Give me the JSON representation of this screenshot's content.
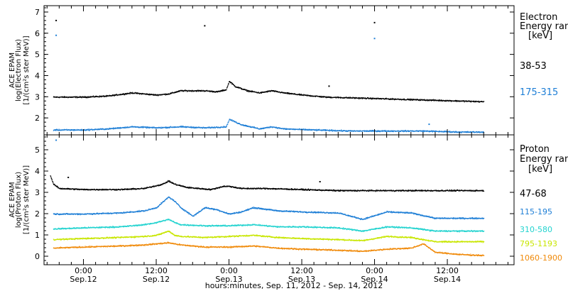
{
  "chart_data": {
    "type": "scatter",
    "xlabel": "hours:minutes, Sep. 11, 2012 - Sep. 14, 2012",
    "x_ticks": [
      {
        "time": "0:00",
        "date": "Sep.12",
        "hour": 0
      },
      {
        "time": "12:00",
        "date": "Sep.12",
        "hour": 12
      },
      {
        "time": "0:00",
        "date": "Sep.13",
        "hour": 24
      },
      {
        "time": "12:00",
        "date": "Sep.13",
        "hour": 36
      },
      {
        "time": "0:00",
        "date": "Sep.14",
        "hour": 48
      },
      {
        "time": "12:00",
        "date": "Sep.14",
        "hour": 60
      }
    ],
    "x_time_reference": "0:00 Sep.12",
    "xlim_hours": [
      -6.5,
      71
    ],
    "panels": [
      {
        "id": "electron",
        "ylabel": [
          "ACE EPAM",
          "log(Electron Flux)",
          "[1/(cm²s ster MeV)]"
        ],
        "ylim": [
          1.2,
          7.3
        ],
        "yticks": [
          2,
          3,
          4,
          5,
          6,
          7
        ],
        "legend": {
          "title": [
            "Electron",
            "Energy ran",
            "[keV]"
          ],
          "entries": [
            {
              "label": "38-53",
              "color": "#000000"
            },
            {
              "label": "175-315",
              "color": "#1f7fd6"
            }
          ]
        },
        "series": [
          {
            "name": "38-53",
            "color": "#000000",
            "x": [
              -5,
              0,
              4,
              8,
              10,
              12,
              14,
              16,
              18,
              20,
              22,
              23.5,
              24,
              25,
              27,
              29,
              31,
              33,
              36,
              40,
              46,
              52,
              58,
              64,
              66
            ],
            "y": [
              3.0,
              3.0,
              3.05,
              3.2,
              3.15,
              3.1,
              3.15,
              3.3,
              3.3,
              3.3,
              3.25,
              3.35,
              3.75,
              3.5,
              3.3,
              3.2,
              3.3,
              3.2,
              3.1,
              3.0,
              2.95,
              2.9,
              2.85,
              2.8,
              2.78
            ],
            "outliers": [
              [
                -4.5,
                6.6
              ],
              [
                20,
                6.35
              ],
              [
                48,
                6.5
              ],
              [
                40.5,
                3.5
              ]
            ]
          },
          {
            "name": "175-315",
            "color": "#1f7fd6",
            "x": [
              -5,
              0,
              4,
              8,
              12,
              16,
              20,
              23.5,
              24,
              26,
              29,
              31,
              33,
              38,
              44,
              50,
              56,
              62,
              66
            ],
            "y": [
              1.45,
              1.45,
              1.5,
              1.6,
              1.55,
              1.6,
              1.55,
              1.6,
              1.95,
              1.7,
              1.5,
              1.6,
              1.5,
              1.45,
              1.4,
              1.4,
              1.4,
              1.35,
              1.35
            ],
            "outliers": [
              [
                -4.5,
                5.9
              ],
              [
                48,
                5.75
              ],
              [
                57,
                1.7
              ]
            ]
          }
        ]
      },
      {
        "id": "proton",
        "ylabel": [
          "ACE EPAM",
          "log(Proton Flux)",
          "[1/(cm²s ster MeV)]"
        ],
        "ylim": [
          -0.4,
          5.7
        ],
        "yticks": [
          0,
          1,
          2,
          3,
          4,
          5
        ],
        "legend": {
          "title": [
            "Proton",
            "Energy ran",
            "[keV]"
          ],
          "entries": [
            {
              "label": "47-68",
              "color": "#000000"
            },
            {
              "label": "115-195",
              "color": "#1f7fd6"
            },
            {
              "label": "310-580",
              "color": "#22d3cf"
            },
            {
              "label": "795-1193",
              "color": "#c8e600"
            },
            {
              "label": "1060-1900",
              "color": "#f08a0a"
            }
          ]
        },
        "series": [
          {
            "name": "47-68",
            "color": "#000000",
            "x": [
              -5.5,
              -5,
              -4,
              0,
              6,
              10,
              13,
              14,
              15,
              17,
              19,
              21,
              23,
              24,
              26,
              30,
              36,
              42,
              48,
              54,
              60,
              66
            ],
            "y": [
              3.8,
              3.4,
              3.2,
              3.15,
              3.15,
              3.2,
              3.4,
              3.55,
              3.4,
              3.25,
              3.2,
              3.15,
              3.3,
              3.3,
              3.2,
              3.2,
              3.15,
              3.1,
              3.1,
              3.1,
              3.1,
              3.1
            ],
            "outliers": [
              [
                39,
                3.5
              ],
              [
                -2.5,
                3.7
              ]
            ]
          },
          {
            "name": "115-195",
            "color": "#1f7fd6",
            "x": [
              -5,
              0,
              6,
              10,
              12,
              14,
              15,
              16,
              18,
              19,
              20,
              22,
              24,
              26,
              28,
              32,
              36,
              42,
              46,
              50,
              54,
              58,
              62,
              66
            ],
            "y": [
              2.0,
              2.0,
              2.05,
              2.15,
              2.3,
              2.8,
              2.6,
              2.3,
              1.9,
              2.1,
              2.3,
              2.2,
              2.0,
              2.1,
              2.3,
              2.15,
              2.1,
              2.05,
              1.75,
              2.1,
              2.05,
              1.8,
              1.8,
              1.8
            ],
            "outliers": [
              [
                -4.5,
                5.45
              ]
            ]
          },
          {
            "name": "310-580",
            "color": "#22d3cf",
            "x": [
              -5,
              0,
              6,
              10,
              12,
              14,
              15,
              16,
              20,
              24,
              28,
              32,
              36,
              42,
              46,
              50,
              54,
              58,
              62,
              66
            ],
            "y": [
              1.3,
              1.35,
              1.4,
              1.5,
              1.6,
              1.75,
              1.6,
              1.5,
              1.45,
              1.45,
              1.5,
              1.4,
              1.4,
              1.35,
              1.2,
              1.4,
              1.35,
              1.2,
              1.2,
              1.2
            ],
            "outliers": []
          },
          {
            "name": "795-1193",
            "color": "#c8e600",
            "x": [
              -5,
              0,
              6,
              10,
              12,
              14,
              15,
              16,
              20,
              24,
              28,
              32,
              36,
              42,
              46,
              50,
              54,
              58,
              62,
              66
            ],
            "y": [
              0.8,
              0.85,
              0.9,
              0.95,
              1.0,
              1.2,
              1.0,
              0.95,
              0.9,
              0.95,
              1.0,
              0.9,
              0.85,
              0.8,
              0.75,
              0.95,
              0.9,
              0.7,
              0.7,
              0.7
            ],
            "outliers": []
          },
          {
            "name": "1060-1900",
            "color": "#f08a0a",
            "x": [
              -5,
              0,
              6,
              10,
              12,
              14,
              16,
              20,
              24,
              28,
              32,
              36,
              42,
              46,
              50,
              54,
              56,
              58,
              62,
              66
            ],
            "y": [
              0.4,
              0.45,
              0.5,
              0.55,
              0.6,
              0.65,
              0.55,
              0.45,
              0.45,
              0.5,
              0.4,
              0.35,
              0.3,
              0.25,
              0.35,
              0.4,
              0.6,
              0.2,
              0.1,
              0.05
            ],
            "outliers": []
          }
        ]
      }
    ]
  }
}
